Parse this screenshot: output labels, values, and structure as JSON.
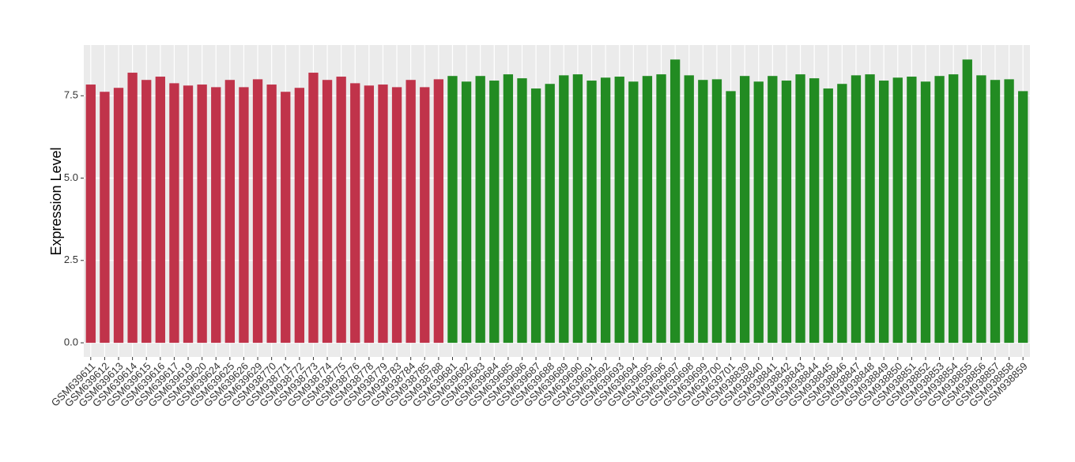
{
  "chart_data": {
    "type": "bar",
    "y_label": "Expression Level",
    "categories": [
      "GSM639611",
      "GSM639612",
      "GSM639613",
      "GSM639614",
      "GSM639615",
      "GSM639616",
      "GSM639617",
      "GSM639619",
      "GSM639620",
      "GSM639624",
      "GSM639625",
      "GSM639626",
      "GSM639629",
      "GSM938770",
      "GSM938771",
      "GSM938772",
      "GSM938773",
      "GSM938774",
      "GSM938775",
      "GSM938776",
      "GSM938778",
      "GSM938779",
      "GSM938783",
      "GSM938784",
      "GSM938785",
      "GSM938788",
      "GSM639681",
      "GSM639682",
      "GSM639683",
      "GSM639684",
      "GSM639685",
      "GSM639686",
      "GSM639687",
      "GSM639688",
      "GSM639689",
      "GSM639690",
      "GSM639691",
      "GSM639692",
      "GSM639693",
      "GSM639694",
      "GSM639695",
      "GSM639696",
      "GSM639697",
      "GSM639698",
      "GSM639699",
      "GSM639700",
      "GSM639701",
      "GSM938839",
      "GSM938840",
      "GSM938841",
      "GSM938842",
      "GSM938843",
      "GSM938844",
      "GSM938845",
      "GSM938846",
      "GSM938847",
      "GSM938848",
      "GSM938849",
      "GSM938850",
      "GSM938851",
      "GSM938852",
      "GSM938853",
      "GSM938854",
      "GSM938855",
      "GSM938856",
      "GSM938857",
      "GSM938858",
      "GSM938859"
    ],
    "values": [
      7.84,
      7.62,
      7.74,
      8.2,
      7.98,
      8.08,
      7.88,
      7.81,
      7.84,
      7.76,
      7.98,
      7.76,
      8.0,
      7.84,
      7.62,
      7.74,
      8.2,
      7.98,
      8.08,
      7.88,
      7.81,
      7.84,
      7.76,
      7.98,
      7.76,
      8.0,
      8.1,
      7.93,
      8.1,
      7.96,
      8.15,
      8.03,
      7.72,
      7.86,
      8.12,
      8.15,
      7.96,
      8.05,
      8.08,
      7.93,
      8.1,
      8.15,
      8.6,
      8.12,
      7.98,
      8.0,
      7.64,
      8.1,
      7.93,
      8.1,
      7.96,
      8.15,
      8.03,
      7.72,
      7.86,
      8.12,
      8.15,
      7.96,
      8.05,
      8.08,
      7.93,
      8.1,
      8.15,
      8.6,
      8.12,
      7.98,
      8.0,
      7.64
    ],
    "colors": [
      "#c0334a",
      "#c0334a",
      "#c0334a",
      "#c0334a",
      "#c0334a",
      "#c0334a",
      "#c0334a",
      "#c0334a",
      "#c0334a",
      "#c0334a",
      "#c0334a",
      "#c0334a",
      "#c0334a",
      "#c0334a",
      "#c0334a",
      "#c0334a",
      "#c0334a",
      "#c0334a",
      "#c0334a",
      "#c0334a",
      "#c0334a",
      "#c0334a",
      "#c0334a",
      "#c0334a",
      "#c0334a",
      "#c0334a",
      "#228b22",
      "#228b22",
      "#228b22",
      "#228b22",
      "#228b22",
      "#228b22",
      "#228b22",
      "#228b22",
      "#228b22",
      "#228b22",
      "#228b22",
      "#228b22",
      "#228b22",
      "#228b22",
      "#228b22",
      "#228b22",
      "#228b22",
      "#228b22",
      "#228b22",
      "#228b22",
      "#228b22",
      "#228b22",
      "#228b22",
      "#228b22",
      "#228b22",
      "#228b22",
      "#228b22",
      "#228b22",
      "#228b22",
      "#228b22",
      "#228b22",
      "#228b22",
      "#228b22",
      "#228b22",
      "#228b22",
      "#228b22",
      "#228b22",
      "#228b22",
      "#228b22",
      "#228b22",
      "#228b22",
      "#228b22"
    ],
    "ylim": [
      -0.43,
      9.04
    ],
    "yticks": [
      {
        "value": 0,
        "label": "0.0"
      },
      2.5,
      {
        "value": 5,
        "label": "5.0"
      },
      7.5
    ],
    "grid": true
  }
}
